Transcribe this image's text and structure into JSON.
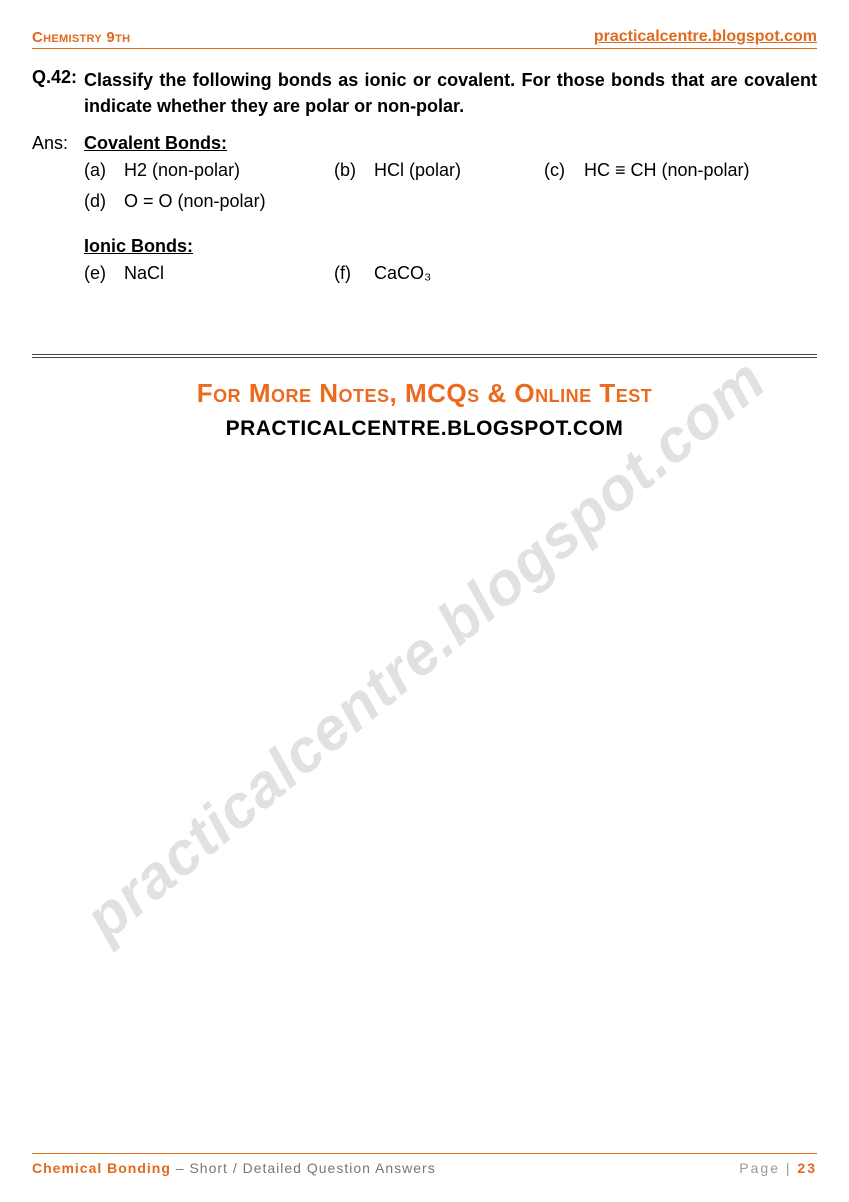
{
  "colors": {
    "accent": "#e06a1d",
    "text": "#000000",
    "muted": "#777777",
    "watermark": "rgba(120,120,120,0.22)",
    "background": "#ffffff"
  },
  "header": {
    "left": "Chemistry 9th",
    "right": "practicalcentre.blogspot.com"
  },
  "question": {
    "number": "Q.42:",
    "text": "Classify the following bonds as ionic or covalent. For those bonds that are covalent indicate whether they are polar or non-polar."
  },
  "answer": {
    "label": "Ans:",
    "covalent_title": "Covalent Bonds:",
    "covalent_rows": [
      [
        {
          "label": "(a)",
          "text": "H2 (non-polar)"
        },
        {
          "label": "(b)",
          "text": "HCl (polar)"
        },
        {
          "label": "(c)",
          "text": "HC ≡ CH (non-polar)"
        }
      ],
      [
        {
          "label": "(d)",
          "text": "O = O (non-polar)"
        }
      ]
    ],
    "ionic_title": "Ionic Bonds:",
    "ionic_rows": [
      [
        {
          "label": "(e)",
          "text": "NaCl"
        },
        {
          "label": "(f)",
          "text": "CaCO₃"
        }
      ]
    ]
  },
  "promo": {
    "line1": "For More Notes, MCQs & Online Test",
    "line2": "PRACTICALCENTRE.BLOGSPOT.COM"
  },
  "watermark": "practicalcentre.blogspot.com",
  "footer": {
    "topic": "Chemical Bonding",
    "subtitle": " – Short / Detailed Question Answers",
    "page_label": "Page | ",
    "page_number": "23"
  }
}
